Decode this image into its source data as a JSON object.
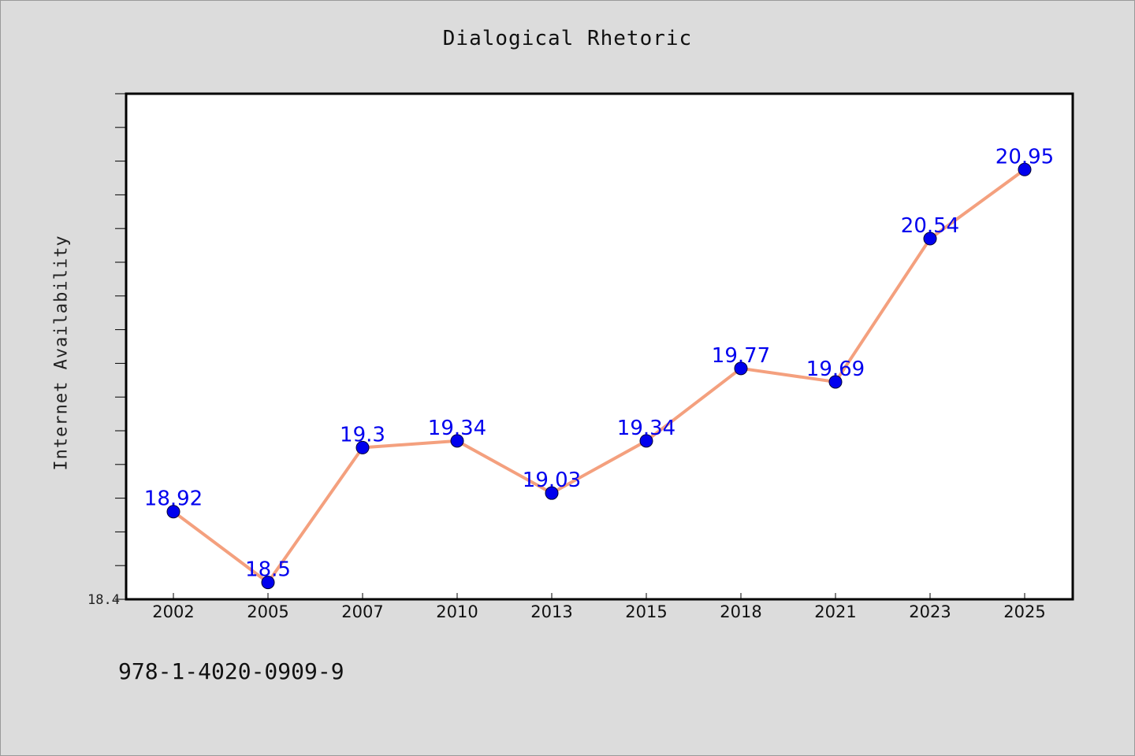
{
  "chart_data": {
    "type": "line",
    "title": "Dialogical Rhetoric",
    "xlabel": "",
    "ylabel": "Internet Availability",
    "categories": [
      "2002",
      "2005",
      "2007",
      "2010",
      "2013",
      "2015",
      "2018",
      "2021",
      "2023",
      "2025"
    ],
    "series": [
      {
        "values": [
          18.92,
          18.5,
          19.3,
          19.34,
          19.03,
          19.34,
          19.77,
          19.69,
          20.54,
          20.95
        ]
      }
    ],
    "data_labels": [
      "18.92",
      "18.5",
      "19.3",
      "19.34",
      "19.03",
      "19.34",
      "19.77",
      "19.69",
      "20.54",
      "20.95"
    ],
    "ylim": [
      18.4,
      21.4
    ],
    "y_tick_labels": [
      "18.4"
    ],
    "grid": false,
    "legend": "none",
    "colors": {
      "line": "#f4a07e",
      "marker": "#0000ee",
      "data_label": "#0000ee",
      "plot_background": "#ffffff",
      "page_background": "#dcdcdc"
    }
  },
  "footer": {
    "code": "978-1-4020-0909-9"
  }
}
